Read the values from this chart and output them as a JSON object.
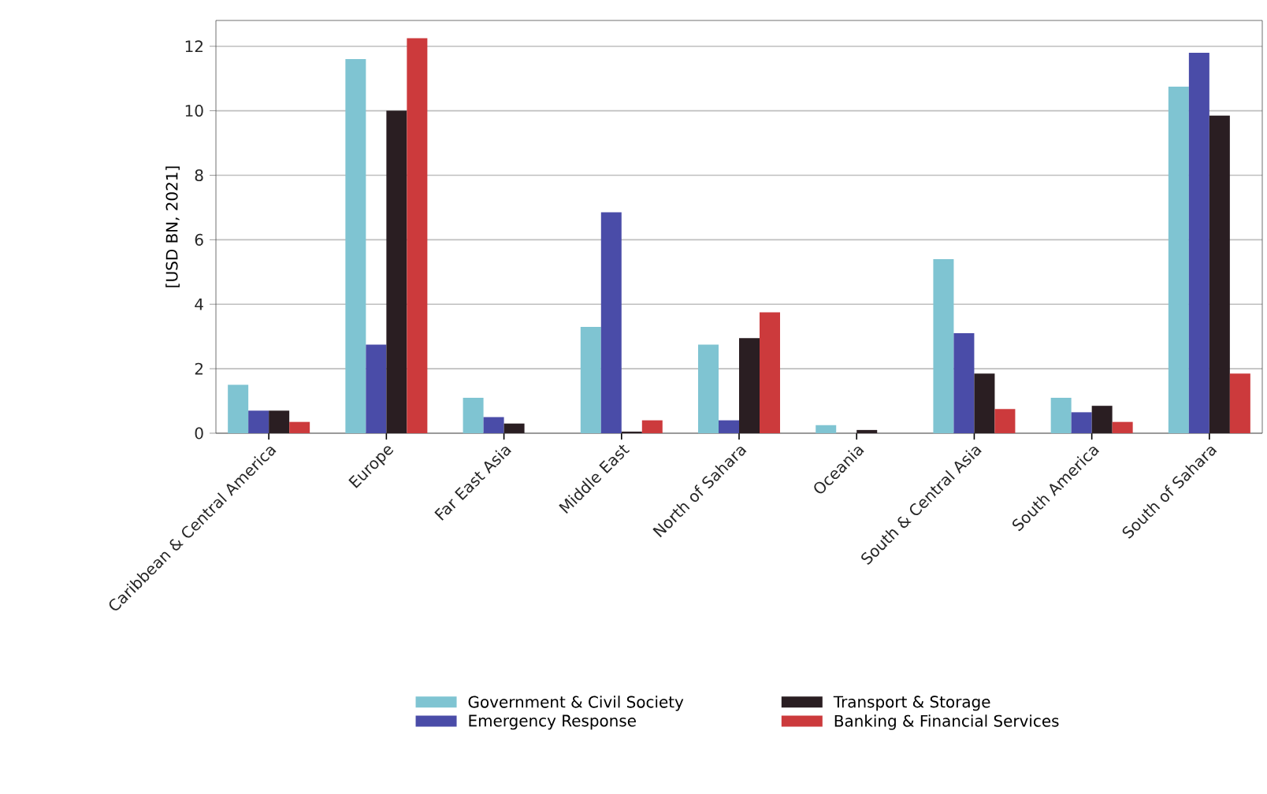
{
  "chart_data": {
    "type": "bar",
    "ylabel": "[USD BN, 2021]",
    "categories": [
      "Caribbean & Central America",
      "Europe",
      "Far East Asia",
      "Middle East",
      "North of Sahara",
      "Oceania",
      "South & Central Asia",
      "South America",
      "South of Sahara"
    ],
    "series": [
      {
        "name": "Government & Civil Society",
        "color": "#7fc4d2",
        "values": [
          1.5,
          11.6,
          1.1,
          3.3,
          2.75,
          0.25,
          5.4,
          1.1,
          10.75
        ]
      },
      {
        "name": "Emergency Response",
        "color": "#4a4ca8",
        "values": [
          0.7,
          2.75,
          0.5,
          6.85,
          0.4,
          0,
          3.1,
          0.65,
          11.8
        ]
      },
      {
        "name": "Transport & Storage",
        "color": "#2a1e22",
        "values": [
          0.7,
          10.0,
          0.3,
          0.05,
          2.95,
          0.1,
          1.85,
          0.85,
          9.85
        ]
      },
      {
        "name": "Banking & Financial Services",
        "color": "#cc3a3c",
        "values": [
          0.35,
          12.25,
          0,
          0.4,
          3.75,
          0,
          0.75,
          0.35,
          1.85
        ]
      }
    ],
    "ylim": [
      0,
      12.8
    ],
    "yticks": [
      0,
      2,
      4,
      6,
      8,
      10,
      12
    ],
    "grid": "y",
    "legend": "bottom"
  }
}
